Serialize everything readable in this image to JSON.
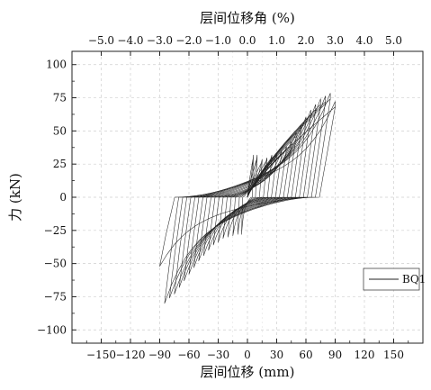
{
  "chart_data": {
    "type": "line",
    "title": "",
    "xlabel": "层间位移 (mm)",
    "x2label": "层间位移角 (%)",
    "ylabel": "力 (kN)",
    "xlim": [
      -180,
      180
    ],
    "ylim": [
      -110,
      110
    ],
    "x_ticks": [
      -150,
      -120,
      -90,
      -60,
      -30,
      0,
      30,
      60,
      90,
      120,
      150
    ],
    "x_tick_labels": [
      "−150",
      "−120",
      "−90",
      "−60",
      "−30",
      "0",
      "30",
      "60",
      "90",
      "120",
      "150"
    ],
    "y_ticks": [
      -100,
      -75,
      -50,
      -25,
      0,
      25,
      50,
      75,
      100
    ],
    "y_tick_labels": [
      "−100",
      "−75",
      "−50",
      "−25",
      "0",
      "25",
      "50",
      "75",
      "100"
    ],
    "x2_ticks": [
      -5,
      -4,
      -3,
      -2,
      -1,
      0,
      1,
      2,
      3,
      4,
      5
    ],
    "x2_tick_labels": [
      "−5.0",
      "−4.0",
      "−3.0",
      "−2.0",
      "−1.0",
      "0.0",
      "1.0",
      "2.0",
      "3.0",
      "4.0",
      "5.0"
    ],
    "grid": true,
    "legend_position": "lower-right",
    "series": [
      {
        "name": "BQ1",
        "color": "#222222",
        "description": "hysteresis loops",
        "positive_peaks": [
          [
            6,
            30
          ],
          [
            10,
            30
          ],
          [
            15,
            27
          ],
          [
            20,
            28
          ],
          [
            25,
            30
          ],
          [
            30,
            31
          ],
          [
            35,
            33
          ],
          [
            40,
            36
          ],
          [
            45,
            40
          ],
          [
            50,
            46
          ],
          [
            55,
            51
          ],
          [
            60,
            57
          ],
          [
            65,
            62
          ],
          [
            70,
            66
          ],
          [
            75,
            70
          ],
          [
            80,
            72
          ],
          [
            85,
            74
          ],
          [
            90,
            68
          ]
        ],
        "negative_peaks": [
          [
            -6,
            -28
          ],
          [
            -10,
            -28
          ],
          [
            -15,
            -29
          ],
          [
            -20,
            -30
          ],
          [
            -25,
            -31
          ],
          [
            -30,
            -34
          ],
          [
            -35,
            -36
          ],
          [
            -40,
            -40
          ],
          [
            -45,
            -44
          ],
          [
            -50,
            -48
          ],
          [
            -55,
            -53
          ],
          [
            -60,
            -58
          ],
          [
            -65,
            -63
          ],
          [
            -70,
            -68
          ],
          [
            -75,
            -73
          ],
          [
            -80,
            -76
          ],
          [
            -85,
            -80
          ],
          [
            -90,
            -52
          ]
        ]
      }
    ]
  }
}
